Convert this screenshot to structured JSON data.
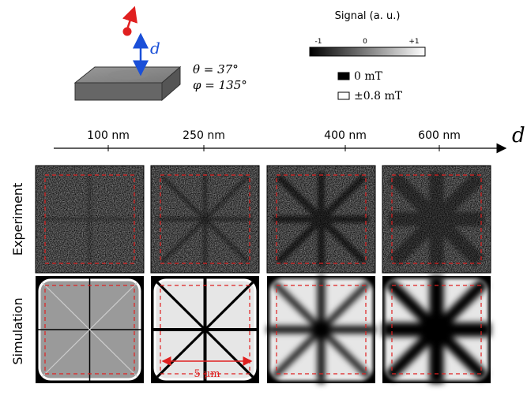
{
  "figure": {
    "moment_distance": "d",
    "theta": "θ = 37°",
    "phi": "φ = 135°",
    "signal_label": "Signal (a. u.)",
    "colorbar_ticks": [
      "-1",
      "0",
      "+1"
    ],
    "legend": [
      "0 mT",
      "±0.8 mT"
    ],
    "thicknesses": [
      "100 nm",
      "250 nm",
      "400 nm",
      "600 nm"
    ],
    "axis_label": "d",
    "rows": [
      "Experiment",
      "Simulation"
    ],
    "scale_bar": "5 μm"
  }
}
